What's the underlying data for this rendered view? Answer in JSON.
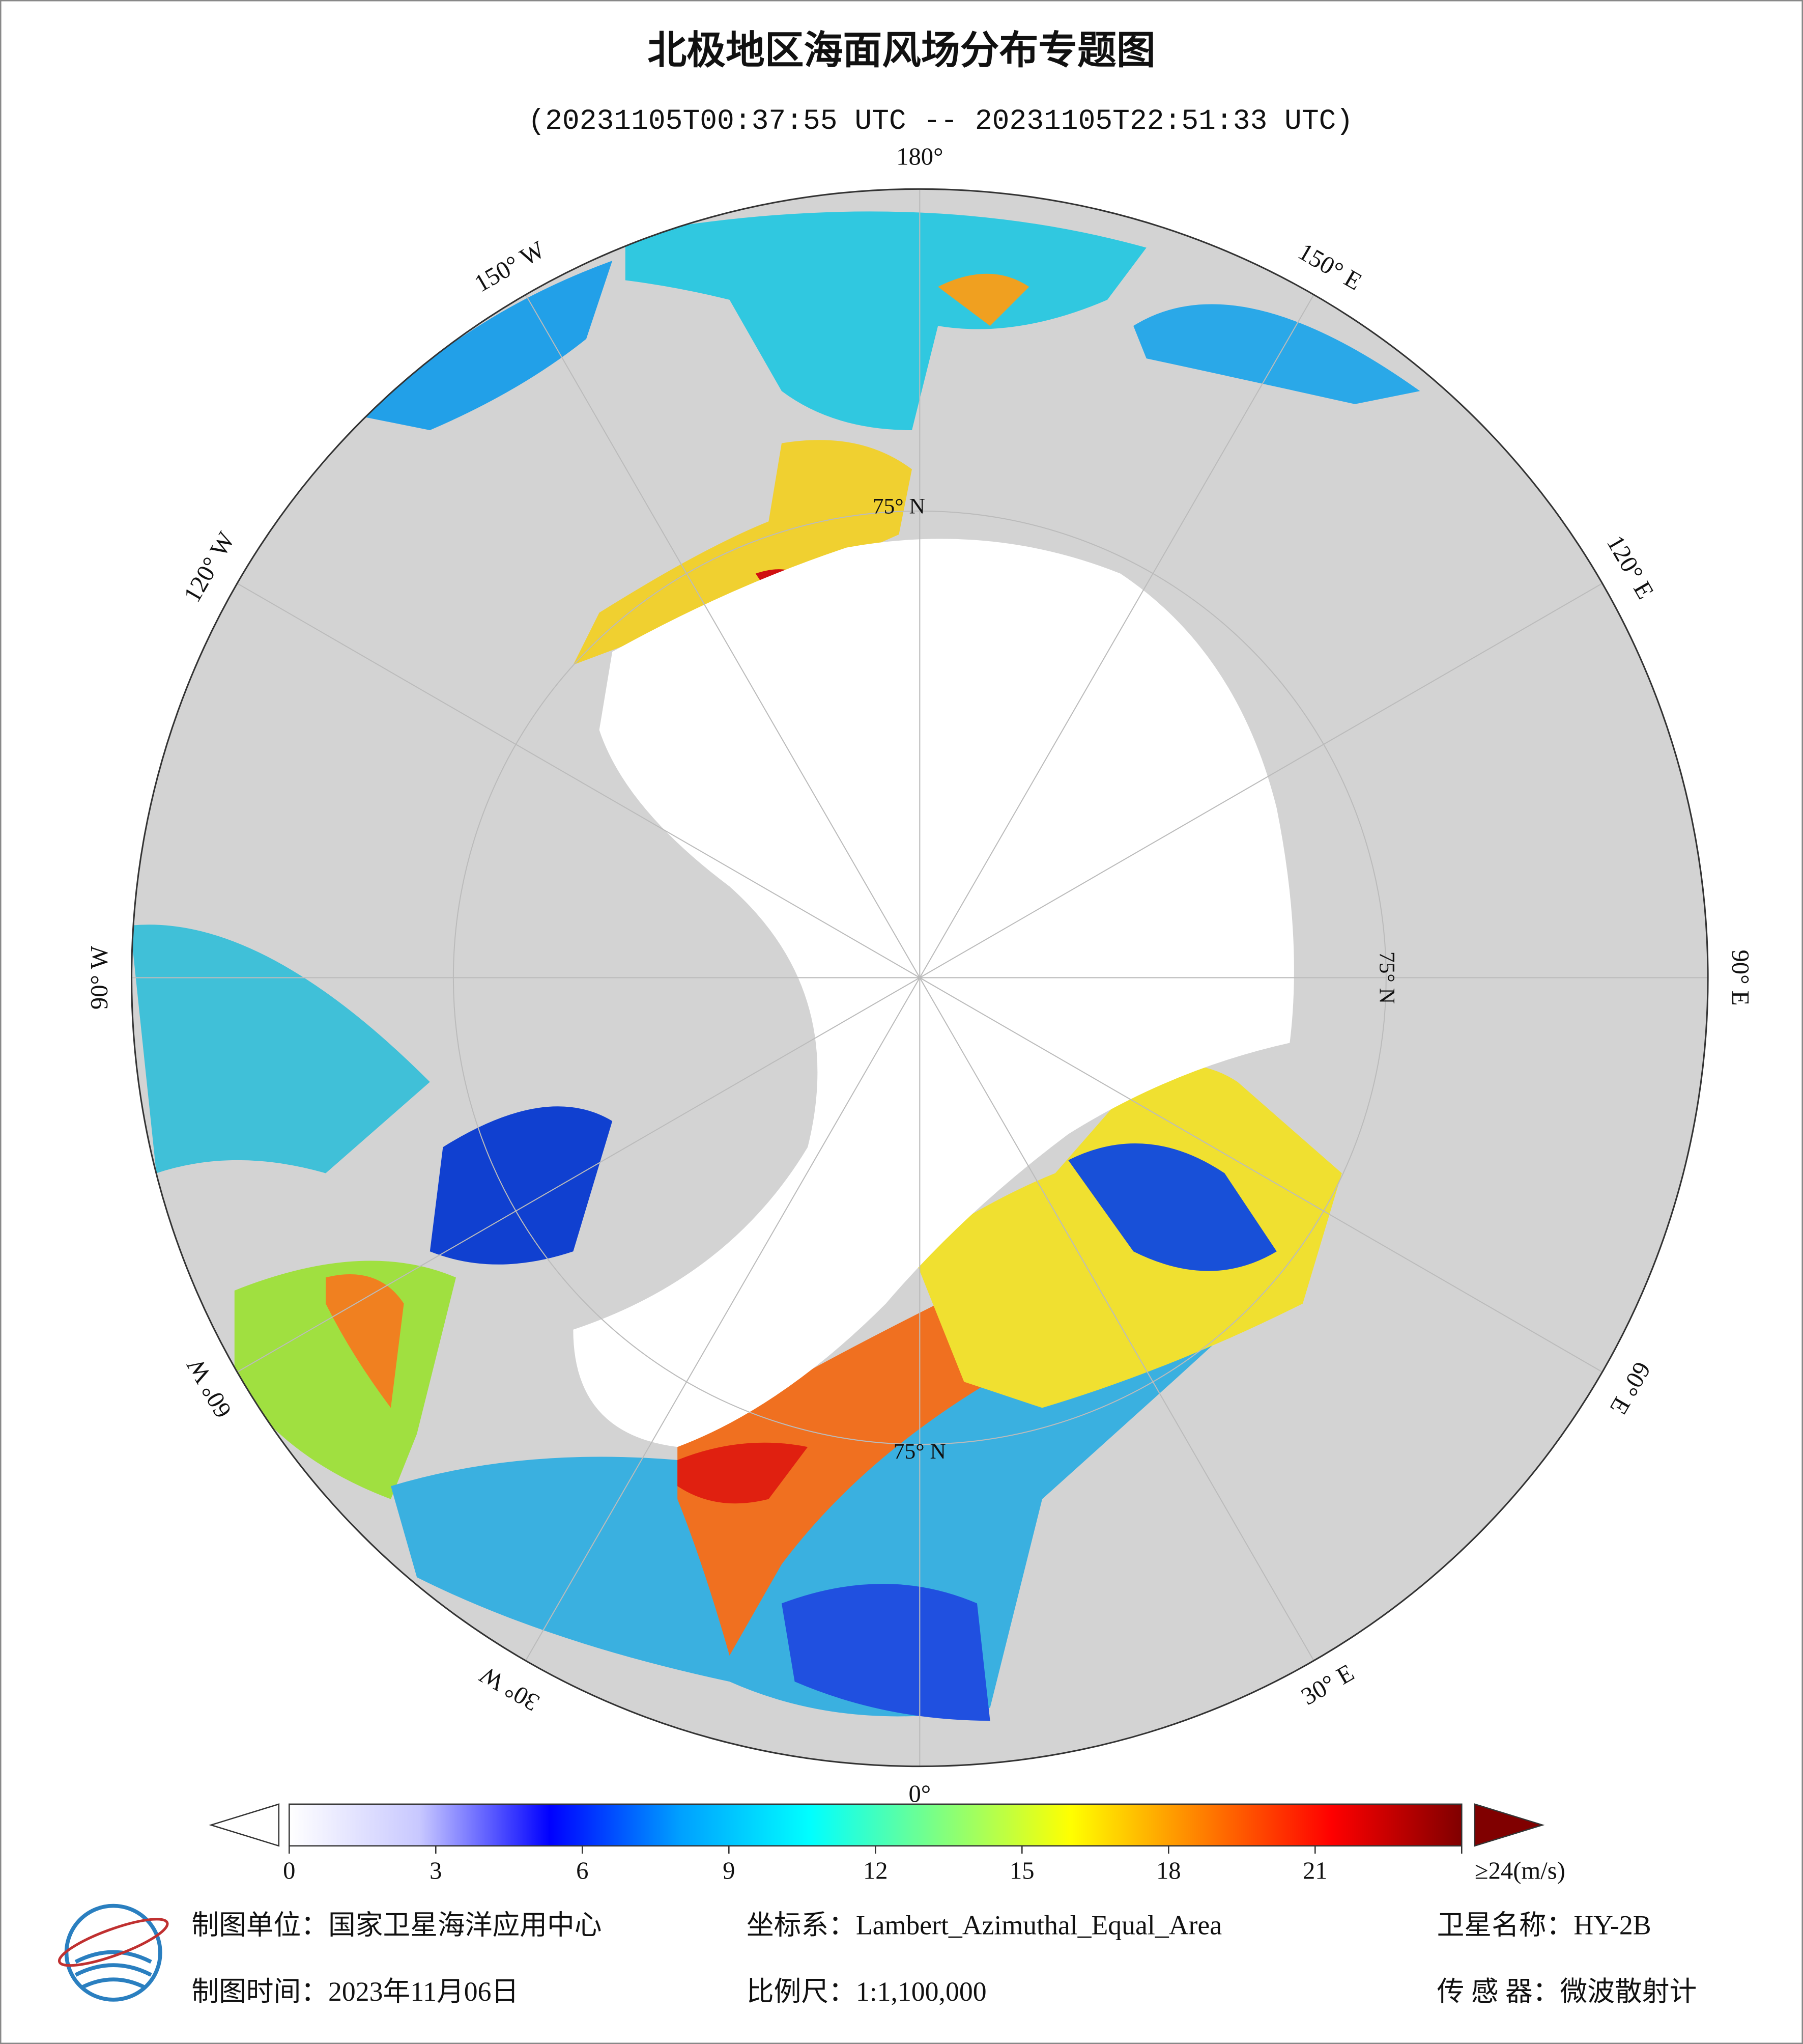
{
  "header": {
    "title": "北极地区海面风场分布专题图",
    "subtitle": "(20231105T00:37:55 UTC -- 20231105T22:51:33 UTC)"
  },
  "map": {
    "lon_labels": [
      "180°",
      "150° E",
      "120° E",
      "90° E",
      "60° E",
      "30° E",
      "0°",
      "30° W",
      "60° W",
      "90° W",
      "120° W",
      "150° W"
    ],
    "lat_label": "75° N"
  },
  "colorbar": {
    "range": [
      0,
      24
    ],
    "ticks": [
      0,
      3,
      6,
      9,
      12,
      15,
      18,
      21,
      {
        "value": 24,
        "label": "≥24(m/s)"
      }
    ],
    "colors": [
      "#ffffff",
      "#c8c8ff",
      "#0000ff",
      "#00a0ff",
      "#00ffff",
      "#80ff80",
      "#ffff00",
      "#ff8000",
      "#ff0000",
      "#800000"
    ]
  },
  "footer": {
    "unit": "制图单位：国家卫星海洋应用中心",
    "date": "制图时间：2023年11月06日",
    "projection": "坐标系：Lambert_Azimuthal_Equal_Area",
    "scale": "比例尺：1:1,100,000",
    "satellite": "卫星名称：HY-2B",
    "sensor": "传 感 器：微波散射计"
  }
}
